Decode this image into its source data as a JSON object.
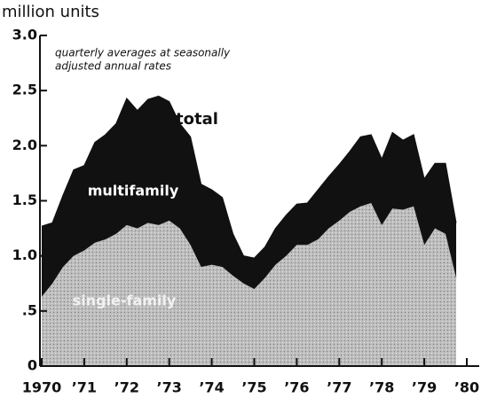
{
  "chart_data": {
    "type": "stacked_area",
    "y_label": "million units",
    "note": [
      "quarterly averages at seasonally",
      "adjusted annual rates"
    ],
    "annotations": [
      "total"
    ],
    "x": [
      1970,
      1970.25,
      1970.5,
      1970.75,
      1971,
      1971.25,
      1971.5,
      1971.75,
      1972,
      1972.25,
      1972.5,
      1972.75,
      1973,
      1973.25,
      1973.5,
      1973.75,
      1974,
      1974.25,
      1974.5,
      1974.75,
      1975,
      1975.25,
      1975.5,
      1975.75,
      1976,
      1976.25,
      1976.5,
      1976.75,
      1977,
      1977.25,
      1977.5,
      1977.75,
      1978,
      1978.25,
      1978.5,
      1978.75,
      1979,
      1979.25,
      1979.5,
      1979.75
    ],
    "series": [
      {
        "name": "single-family",
        "color": "#b4b4b4",
        "values": [
          0.63,
          0.75,
          0.9,
          1.0,
          1.05,
          1.12,
          1.15,
          1.2,
          1.28,
          1.25,
          1.3,
          1.28,
          1.32,
          1.25,
          1.1,
          0.9,
          0.92,
          0.9,
          0.82,
          0.75,
          0.7,
          0.8,
          0.92,
          1.0,
          1.1,
          1.1,
          1.15,
          1.25,
          1.32,
          1.4,
          1.45,
          1.48,
          1.28,
          1.43,
          1.42,
          1.45,
          1.1,
          1.25,
          1.2,
          0.8
        ]
      },
      {
        "name": "multifamily",
        "color": "#111111",
        "values": [
          0.64,
          0.55,
          0.65,
          0.78,
          0.77,
          0.91,
          0.95,
          1.0,
          1.15,
          1.07,
          1.12,
          1.17,
          1.08,
          0.95,
          0.98,
          0.75,
          0.68,
          0.63,
          0.38,
          0.25,
          0.28,
          0.28,
          0.33,
          0.37,
          0.37,
          0.38,
          0.45,
          0.47,
          0.51,
          0.55,
          0.63,
          0.62,
          0.6,
          0.69,
          0.63,
          0.65,
          0.6,
          0.59,
          0.64,
          0.5
        ]
      }
    ],
    "xlim": [
      1970,
      1980
    ],
    "xticks": [
      {
        "value": 1970,
        "label": "1970"
      },
      {
        "value": 1971,
        "label": "’71"
      },
      {
        "value": 1972,
        "label": "’72"
      },
      {
        "value": 1973,
        "label": "’73"
      },
      {
        "value": 1974,
        "label": "’74"
      },
      {
        "value": 1975,
        "label": "’75"
      },
      {
        "value": 1976,
        "label": "’76"
      },
      {
        "value": 1977,
        "label": "’77"
      },
      {
        "value": 1978,
        "label": "’78"
      },
      {
        "value": 1979,
        "label": "’79"
      },
      {
        "value": 1980,
        "label": "’80"
      }
    ],
    "ylim": [
      0,
      3
    ],
    "yticks": [
      0,
      {
        "value": 0.5,
        "label": ".5"
      },
      {
        "value": 1,
        "label": "1.0"
      },
      {
        "value": 1.5,
        "label": "1.5"
      },
      {
        "value": 2,
        "label": "2.0"
      },
      {
        "value": 2.5,
        "label": "2.5"
      },
      {
        "value": 3,
        "label": "3.0"
      }
    ]
  }
}
